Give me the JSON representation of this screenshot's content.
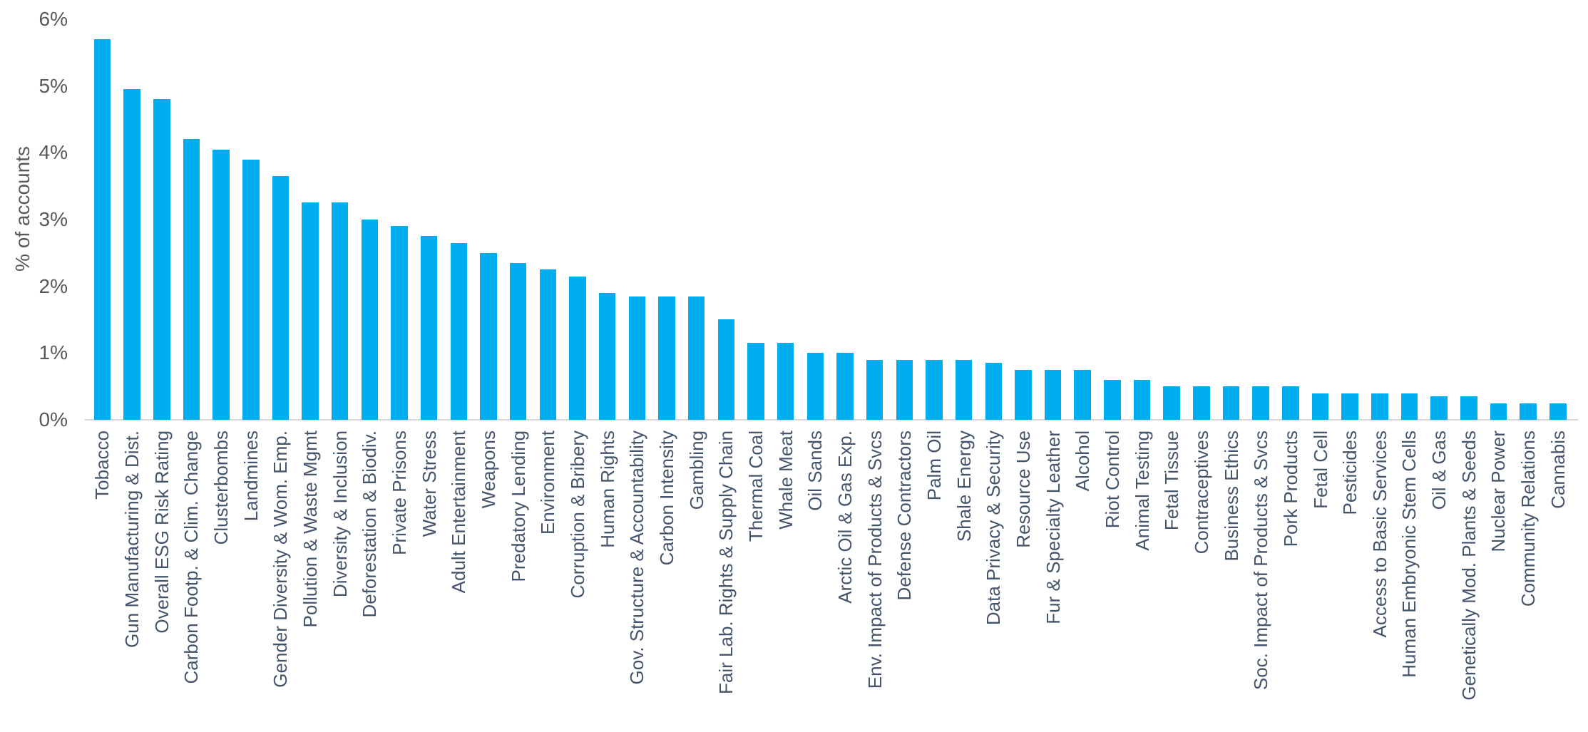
{
  "chart_data": {
    "type": "bar",
    "title": "",
    "xlabel": "",
    "ylabel": "% of accounts",
    "ylim": [
      0,
      6
    ],
    "ytick_labels": [
      "0%",
      "1%",
      "2%",
      "3%",
      "4%",
      "5%",
      "6%"
    ],
    "grid": false,
    "legend": null,
    "bar_color": "#00AEEF",
    "axis_line_color": "#D9D9D9",
    "ytick_color": "#595959",
    "xlabel_color": "#44546A",
    "categories": [
      "Tobacco",
      "Gun Manufacturing & Dist.",
      "Overall ESG Risk Rating",
      "Carbon Footp. & Clim. Change",
      "Clusterbombs",
      "Landmines",
      "Gender Diversity & Wom. Emp.",
      "Pollution & Waste Mgmt",
      "Diversity & Inclusion",
      "Deforestation & Biodiv.",
      "Private Prisons",
      "Water Stress",
      "Adult Entertainment",
      "Weapons",
      "Predatory Lending",
      "Environment",
      "Corruption & Bribery",
      "Human Rights",
      "Gov. Structure & Accountability",
      "Carbon Intensity",
      "Gambling",
      "Fair Lab. Rights & Supply Chain",
      "Thermal Coal",
      "Whale Meat",
      "Oil Sands",
      "Arctic Oil & Gas Exp.",
      "Env. Impact of Products & Svcs",
      "Defense Contractors",
      "Palm Oil",
      "Shale Energy",
      "Data Privacy & Security",
      "Resource Use",
      "Fur & Specialty Leather",
      "Alcohol",
      "Riot Control",
      "Animal Testing",
      "Fetal Tissue",
      "Contraceptives",
      "Business Ethics",
      "Soc. Impact of Products & Svcs",
      "Pork Products",
      "Fetal Cell",
      "Pesticides",
      "Access to Basic Services",
      "Human Embryonic Stem Cells",
      "Oil & Gas",
      "Genetically Mod. Plants & Seeds",
      "Nuclear Power",
      "Community Relations",
      "Cannabis"
    ],
    "values": [
      5.7,
      4.95,
      4.8,
      4.2,
      4.05,
      3.9,
      3.65,
      3.25,
      3.25,
      3.0,
      2.9,
      2.75,
      2.65,
      2.5,
      2.35,
      2.25,
      2.15,
      1.9,
      1.85,
      1.85,
      1.85,
      1.5,
      1.15,
      1.15,
      1.0,
      1.0,
      0.9,
      0.9,
      0.9,
      0.9,
      0.85,
      0.75,
      0.75,
      0.75,
      0.6,
      0.6,
      0.5,
      0.5,
      0.5,
      0.5,
      0.5,
      0.4,
      0.4,
      0.4,
      0.4,
      0.35,
      0.35,
      0.25,
      0.25,
      0.25
    ]
  }
}
